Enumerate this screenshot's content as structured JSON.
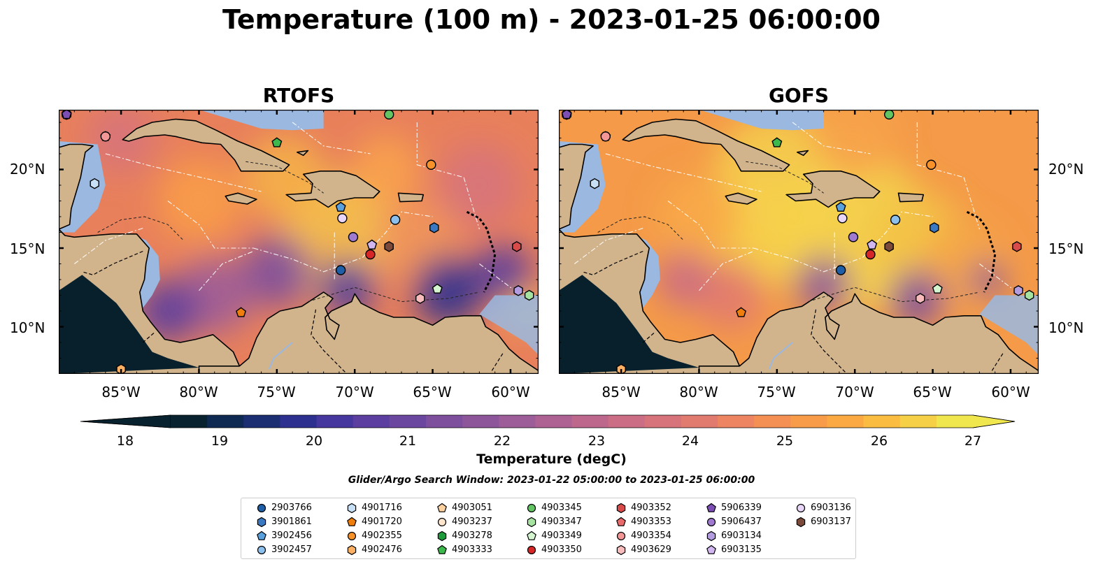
{
  "title": "Temperature (100 m) - 2023-01-25 06:00:00",
  "panels": [
    {
      "title": "RTOFS",
      "scheme": "rtofs"
    },
    {
      "title": "GOFS",
      "scheme": "gofs"
    }
  ],
  "map": {
    "lon_range": [
      -89,
      -58.2
    ],
    "lat_range": [
      7.0,
      23.8
    ],
    "lat_ticks": [
      {
        "value": 20,
        "label": "20°N"
      },
      {
        "value": 15,
        "label": "15°N"
      },
      {
        "value": 10,
        "label": "10°N"
      }
    ],
    "lon_ticks": [
      {
        "value": -85,
        "label": "85°W"
      },
      {
        "value": -80,
        "label": "80°W"
      },
      {
        "value": -75,
        "label": "75°W"
      },
      {
        "value": -70,
        "label": "70°W"
      },
      {
        "value": -65,
        "label": "65°W"
      },
      {
        "value": -60,
        "label": "60°W"
      }
    ],
    "land_color": "#d2b48c",
    "shallow_water_color": "#9ab8e0"
  },
  "colorbar": {
    "label": "Temperature (degC)",
    "ticks": [
      "18",
      "19",
      "20",
      "21",
      "22",
      "23",
      "24",
      "25",
      "26",
      "27"
    ],
    "range": [
      18,
      27
    ],
    "colors": [
      "#08232f",
      "#0f2a52",
      "#1b2e72",
      "#2e3090",
      "#46379e",
      "#5b3e9f",
      "#6c479f",
      "#7d4f9d",
      "#8d569b",
      "#9d5d98",
      "#ad6293",
      "#bd678c",
      "#cb6d84",
      "#d7737a",
      "#e27b6f",
      "#ed8562",
      "#f49054",
      "#f89c49",
      "#fbaa43",
      "#fbbc42",
      "#f6d046",
      "#f0e64e"
    ]
  },
  "search_window": "Glider/Argo Search Window: 2023-01-22 05:00:00 to 2023-01-25 06:00:00",
  "floats": [
    {
      "id": "2903766",
      "marker": "circle",
      "color": "#1f5fa8",
      "lon": -70.9,
      "lat": 13.6
    },
    {
      "id": "3901861",
      "marker": "hexagon",
      "color": "#3a78c2",
      "lon": -64.9,
      "lat": 16.3
    },
    {
      "id": "3902456",
      "marker": "pentagon",
      "color": "#5aa0dc",
      "lon": -70.9,
      "lat": 17.6
    },
    {
      "id": "3902457",
      "marker": "circle",
      "color": "#8ec0ee",
      "lon": -67.4,
      "lat": 16.8
    },
    {
      "id": "4901716",
      "marker": "hexagon",
      "color": "#c7e0f6",
      "lon": -86.7,
      "lat": 19.1
    },
    {
      "id": "4901720",
      "marker": "pentagon",
      "color": "#f07e0c",
      "lon": -77.3,
      "lat": 10.9
    },
    {
      "id": "4902355",
      "marker": "circle",
      "color": "#f7922a",
      "lon": -65.1,
      "lat": 20.3
    },
    {
      "id": "4902476",
      "marker": "hexagon",
      "color": "#fbb063",
      "lon": -85.0,
      "lat": 7.3
    },
    {
      "id": "4903051",
      "marker": "pentagon",
      "color": "#fdd2a0",
      "lon": -86.0,
      "lat": 22.1
    },
    {
      "id": "4903237",
      "marker": "circle",
      "color": "#fde6cd",
      "lon": -88.5,
      "lat": 23.5
    },
    {
      "id": "4903278",
      "marker": "hexagon",
      "color": "#1d9a3a",
      "lon": -88.5,
      "lat": 23.5
    },
    {
      "id": "4903333",
      "marker": "pentagon",
      "color": "#3cb84c",
      "lon": -75.0,
      "lat": 21.7
    },
    {
      "id": "4903345",
      "marker": "circle",
      "color": "#62c463",
      "lon": -67.8,
      "lat": 23.5
    },
    {
      "id": "4903347",
      "marker": "hexagon",
      "color": "#a6e3a0",
      "lon": -58.8,
      "lat": 12.0
    },
    {
      "id": "4903349",
      "marker": "pentagon",
      "color": "#d4f5cf",
      "lon": -64.7,
      "lat": 12.4
    },
    {
      "id": "4903350",
      "marker": "circle",
      "color": "#d62728",
      "lon": -69.0,
      "lat": 14.6
    },
    {
      "id": "4903352",
      "marker": "hexagon",
      "color": "#d94b4b",
      "lon": -59.6,
      "lat": 15.1
    },
    {
      "id": "4903353",
      "marker": "pentagon",
      "color": "#e96a6a",
      "lon": -88.5,
      "lat": 23.5
    },
    {
      "id": "4903354",
      "marker": "circle",
      "color": "#f29696",
      "lon": -86.0,
      "lat": 22.1
    },
    {
      "id": "4903629",
      "marker": "hexagon",
      "color": "#f8bcbc",
      "lon": -65.8,
      "lat": 11.8
    },
    {
      "id": "5906339",
      "marker": "pentagon",
      "color": "#7d4fb5",
      "lon": -88.5,
      "lat": 23.5
    },
    {
      "id": "5906437",
      "marker": "circle",
      "color": "#a07ad0",
      "lon": -70.1,
      "lat": 15.7
    },
    {
      "id": "6903134",
      "marker": "hexagon",
      "color": "#b49ce0",
      "lon": -59.5,
      "lat": 12.3
    },
    {
      "id": "6903135",
      "marker": "pentagon",
      "color": "#d1b6f0",
      "lon": -68.9,
      "lat": 15.2
    },
    {
      "id": "6903136",
      "marker": "circle",
      "color": "#e8d6f8",
      "lon": -70.8,
      "lat": 16.9
    },
    {
      "id": "6903137",
      "marker": "hexagon",
      "color": "#7b4a3a",
      "lon": -67.8,
      "lat": 15.1
    },
    {
      "id": "_pent_a",
      "marker": "none",
      "color": "#9b6cc8",
      "lon": -70.4,
      "lat": 14.7
    }
  ]
}
